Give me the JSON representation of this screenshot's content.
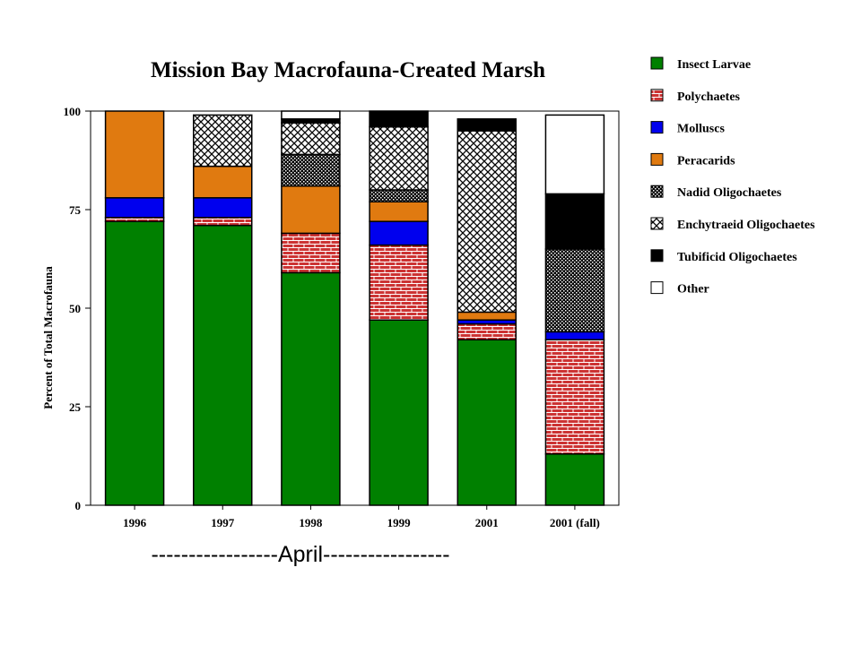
{
  "chart_data": {
    "type": "bar",
    "stacked": true,
    "title": "Mission Bay Macrofauna-Created Marsh",
    "xlabel": "",
    "ylabel": "Percent of Total Macrofauna",
    "ylim": [
      0,
      100
    ],
    "yticks": [
      "0",
      "25",
      "50",
      "75",
      "100"
    ],
    "grid": false,
    "legend_position": "right",
    "categories": [
      "1996",
      "1997",
      "1998",
      "1999",
      "2001",
      "2001 (fall)"
    ],
    "series": [
      {
        "name": "Insect Larvae",
        "color": "#008000",
        "pattern": "solid",
        "values": [
          72,
          71,
          59,
          47,
          42,
          13
        ]
      },
      {
        "name": "Polychaetes",
        "color": "#cc3333",
        "pattern": "brick",
        "values": [
          1,
          2,
          10,
          19,
          4,
          29
        ]
      },
      {
        "name": "Molluscs",
        "color": "#0000ee",
        "pattern": "solid",
        "values": [
          5,
          5,
          0,
          6,
          1,
          2
        ]
      },
      {
        "name": "Peracarids",
        "color": "#e07a10",
        "pattern": "solid",
        "values": [
          22,
          8,
          12,
          5,
          2,
          0
        ]
      },
      {
        "name": "Nadid Oligochaetes",
        "color": "#000000",
        "pattern": "fine-check",
        "values": [
          0,
          0,
          8,
          3,
          0,
          21
        ]
      },
      {
        "name": "Enchytraeid Oligochaetes",
        "color": "#000000",
        "pattern": "crosshatch",
        "values": [
          0,
          13,
          8,
          16,
          46,
          0
        ]
      },
      {
        "name": "Tubificid Oligochaetes",
        "color": "#000000",
        "pattern": "solid",
        "values": [
          0,
          0,
          1,
          4,
          3,
          14
        ]
      },
      {
        "name": "Other",
        "color": "#ffffff",
        "pattern": "solid",
        "values": [
          0,
          0,
          2,
          0,
          0,
          20
        ]
      }
    ],
    "annotation": "-----------------April-----------------"
  }
}
